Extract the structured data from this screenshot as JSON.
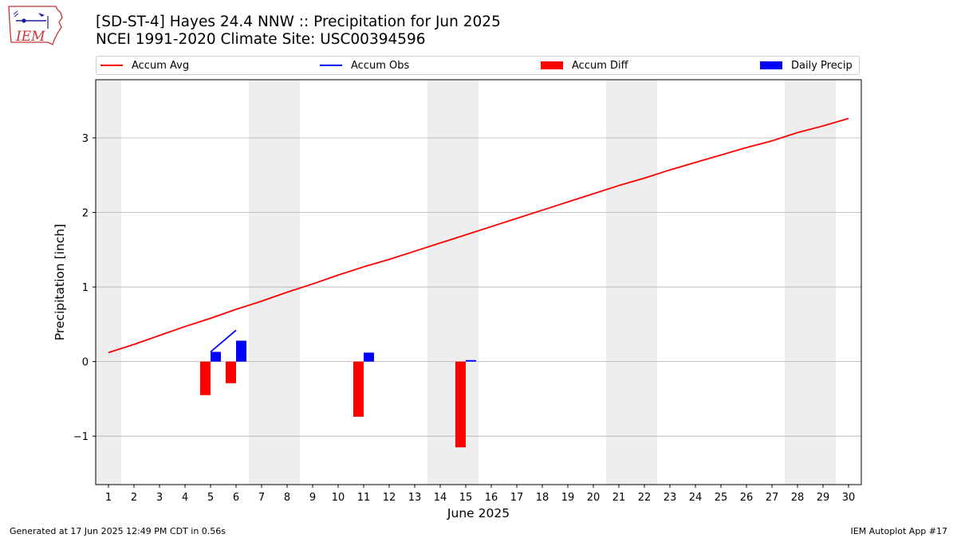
{
  "logo": {
    "text": "IEM",
    "icon": "iowa-state-map-weather-station-icon"
  },
  "title": {
    "line1": "[SD-ST-4] Hayes 24.4 NNW :: Precipitation for Jun 2025",
    "line2": "NCEI 1991-2020 Climate Site: USC00394596"
  },
  "footer": {
    "left": "Generated at 17 Jun 2025 12:49 PM CDT in 0.56s",
    "right": "IEM Autoplot App #17"
  },
  "chart_data": {
    "type": "bar",
    "xlabel": "June 2025",
    "ylabel": "Precipitation [inch]",
    "xlim": [
      0.5,
      30.5
    ],
    "ylim": [
      -1.65,
      3.78
    ],
    "x_ticks": [
      1,
      2,
      3,
      4,
      5,
      6,
      7,
      8,
      9,
      10,
      11,
      12,
      13,
      14,
      15,
      16,
      17,
      18,
      19,
      20,
      21,
      22,
      23,
      24,
      25,
      26,
      27,
      28,
      29,
      30
    ],
    "y_ticks": [
      -1,
      0,
      1,
      2,
      3
    ],
    "y_tick_labels": [
      "−1",
      "0",
      "1",
      "2",
      "3"
    ],
    "grid": "horizontal",
    "legend_placement": "top",
    "weekend_shading": [
      [
        0.5,
        1.5
      ],
      [
        6.5,
        8.5
      ],
      [
        13.5,
        15.5
      ],
      [
        20.5,
        22.5
      ],
      [
        27.5,
        29.5
      ]
    ],
    "colors": {
      "accum_avg": "#ff0000",
      "accum_obs": "#0000ff",
      "accum_diff": "#ff0000",
      "daily_precip": "#0000ff",
      "weekend": "#eeeeee",
      "grid": "#b0b0b0"
    },
    "series": [
      {
        "name": "Accum Avg",
        "kind": "line",
        "x": [
          1,
          2,
          3,
          4,
          5,
          6,
          7,
          8,
          9,
          10,
          11,
          12,
          13,
          14,
          15,
          16,
          17,
          18,
          19,
          20,
          21,
          22,
          23,
          24,
          25,
          26,
          27,
          28,
          29,
          30
        ],
        "values": [
          0.12,
          0.23,
          0.35,
          0.47,
          0.58,
          0.7,
          0.81,
          0.93,
          1.04,
          1.16,
          1.27,
          1.37,
          1.48,
          1.59,
          1.7,
          1.81,
          1.92,
          2.03,
          2.14,
          2.25,
          2.36,
          2.46,
          2.57,
          2.67,
          2.77,
          2.87,
          2.96,
          3.07,
          3.16,
          3.26
        ]
      },
      {
        "name": "Accum Obs",
        "kind": "line",
        "x": [
          5,
          6
        ],
        "values": [
          0.13,
          0.42
        ]
      },
      {
        "name": "Accum Diff",
        "kind": "bar",
        "x": [
          5,
          6,
          11,
          15
        ],
        "values": [
          -0.45,
          -0.29,
          -0.74,
          -1.15
        ]
      },
      {
        "name": "Daily Precip",
        "kind": "bar",
        "x": [
          5,
          6,
          11,
          15
        ],
        "values": [
          0.13,
          0.28,
          0.12,
          0.02
        ]
      }
    ]
  }
}
